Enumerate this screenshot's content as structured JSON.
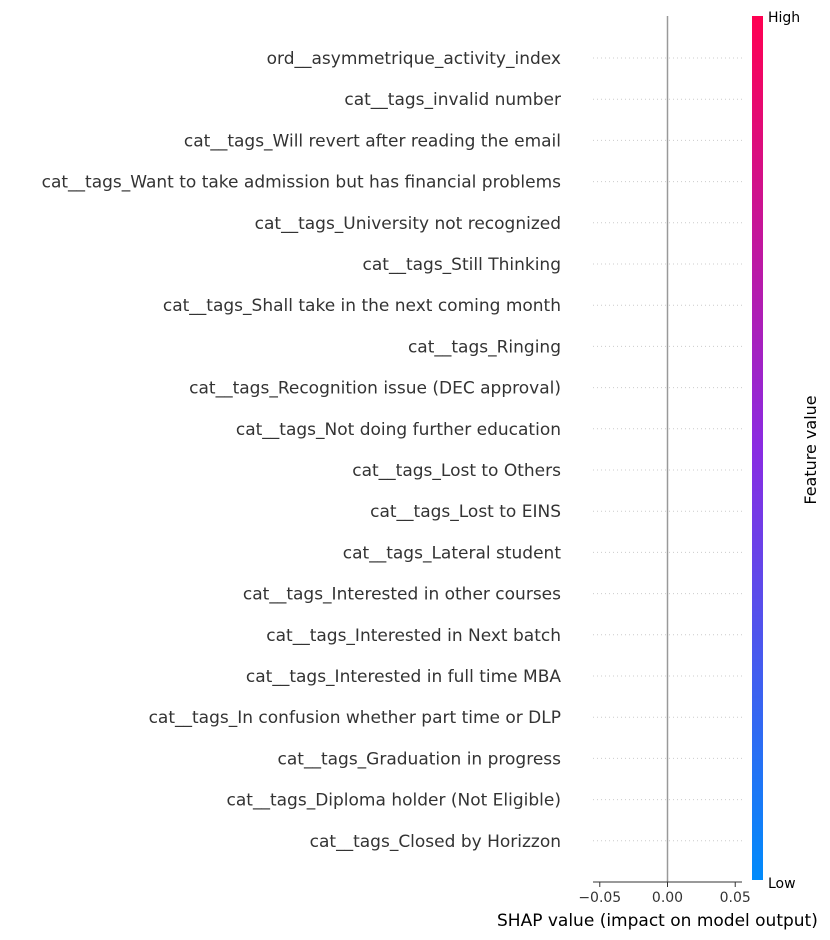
{
  "chart_data": {
    "type": "scatter",
    "subtype": "shap-beeswarm-summary",
    "features": [
      "ord__asymmetrique_activity_index",
      "cat__tags_invalid number",
      "cat__tags_Will revert after reading the email",
      "cat__tags_Want to take admission but has financial problems",
      "cat__tags_University not recognized",
      "cat__tags_Still Thinking",
      "cat__tags_Shall take in the next coming month",
      "cat__tags_Ringing",
      "cat__tags_Recognition issue (DEC approval)",
      "cat__tags_Not doing further education",
      "cat__tags_Lost to Others",
      "cat__tags_Lost to EINS",
      "cat__tags_Lateral student",
      "cat__tags_Interested in other courses",
      "cat__tags_Interested in Next batch",
      "cat__tags_Interested  in full time MBA",
      "cat__tags_In confusion whether part time or DLP",
      "cat__tags_Graduation in progress",
      "cat__tags_Diploma holder (Not Eligible)",
      "cat__tags_Closed by Horizzon"
    ],
    "shap_values": [
      0,
      0,
      0,
      0,
      0,
      0,
      0,
      0,
      0,
      0,
      0,
      0,
      0,
      0,
      0,
      0,
      0,
      0,
      0,
      0
    ],
    "xlabel": "SHAP value (impact on model output)",
    "xlim": [
      -0.055,
      0.055
    ],
    "xticks": [
      -0.05,
      0.0,
      0.05
    ],
    "xtick_labels": [
      "−0.05",
      "0.00",
      "0.05"
    ],
    "zero_line": true,
    "colorbar": {
      "label": "Feature value",
      "high_label": "High",
      "low_label": "Low",
      "high_color": "#ff0051",
      "mid_color": "#8a2be2",
      "low_color": "#008bfb"
    },
    "row_guides": "dotted",
    "grid": false
  }
}
